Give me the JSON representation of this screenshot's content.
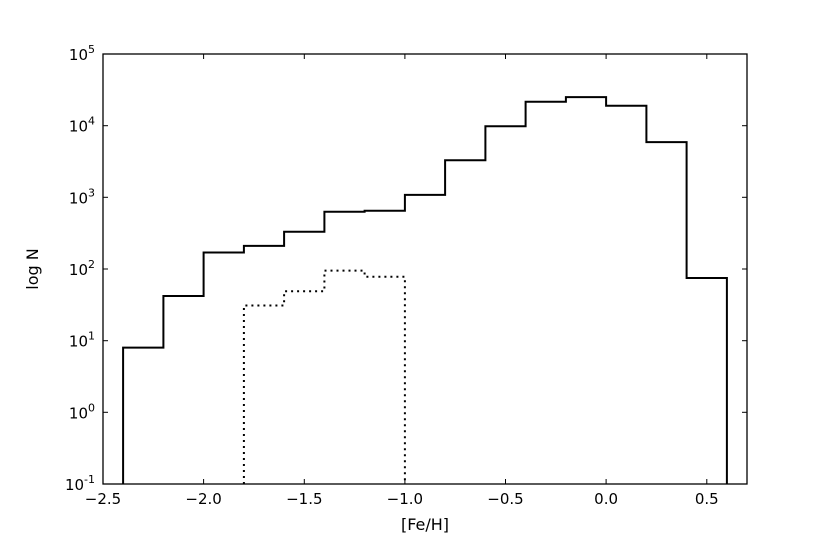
{
  "chart_data": {
    "type": "histogram",
    "title": "",
    "xlabel": "[Fe/H]",
    "ylabel": "log N",
    "xlim": [
      -2.5,
      0.7
    ],
    "ylim": [
      0.1,
      100000
    ],
    "yscale": "log",
    "grid": false,
    "legend": "none",
    "x_ticks": [
      "−2.5",
      "−2.0",
      "−1.5",
      "−1.0",
      "−0.5",
      "0.0",
      "0.5"
    ],
    "x_tick_values": [
      -2.5,
      -2.0,
      -1.5,
      -1.0,
      -0.5,
      0.0,
      0.5
    ],
    "y_ticks": [
      {
        "base": "10",
        "exp": "-1"
      },
      {
        "base": "10",
        "exp": "0"
      },
      {
        "base": "10",
        "exp": "1"
      },
      {
        "base": "10",
        "exp": "2"
      },
      {
        "base": "10",
        "exp": "3"
      },
      {
        "base": "10",
        "exp": "4"
      },
      {
        "base": "10",
        "exp": "5"
      }
    ],
    "y_tick_values": [
      0.1,
      1,
      10,
      100,
      1000,
      10000,
      100000
    ],
    "series": [
      {
        "style": "solid",
        "color": "#000000",
        "bin_edges": [
          -2.4,
          -2.2,
          -2.0,
          -1.8,
          -1.6,
          -1.4,
          -1.2,
          -1.0,
          -0.8,
          -0.6,
          -0.4,
          -0.2,
          0.0,
          0.2,
          0.4,
          0.6
        ],
        "counts": [
          8,
          42,
          170,
          210,
          330,
          630,
          650,
          1080,
          3300,
          9800,
          21500,
          25000,
          19000,
          5900,
          75
        ]
      },
      {
        "style": "dotted",
        "color": "#000000",
        "bin_edges": [
          -1.8,
          -1.6,
          -1.4,
          -1.2,
          -1.0
        ],
        "counts": [
          31,
          49,
          95,
          78
        ]
      }
    ]
  }
}
